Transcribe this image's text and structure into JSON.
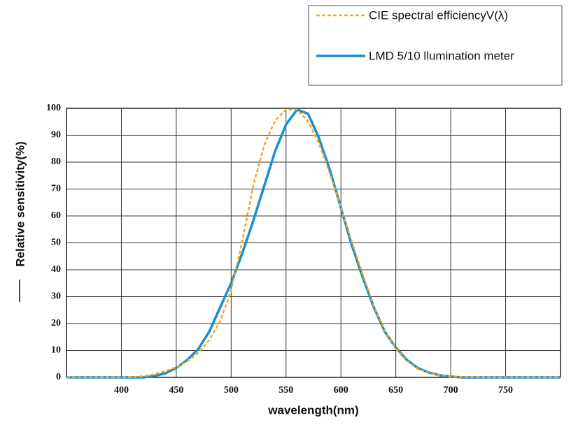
{
  "chart_data": {
    "type": "line",
    "xlabel": "wavelength(nm)",
    "ylabel": "Relative sensitivity(%)",
    "x": [
      350,
      360,
      370,
      380,
      390,
      400,
      410,
      420,
      430,
      440,
      450,
      460,
      470,
      480,
      490,
      500,
      510,
      520,
      530,
      540,
      550,
      560,
      570,
      580,
      590,
      600,
      610,
      620,
      630,
      640,
      650,
      660,
      670,
      680,
      690,
      700,
      710,
      720,
      730,
      740,
      750,
      760,
      770,
      780,
      790,
      800
    ],
    "series": [
      {
        "name": "CIE spectral efficiencyV(λ)",
        "color": "#f5a623",
        "dashed": true,
        "values": [
          0,
          0,
          0,
          0,
          0,
          0,
          0.1,
          0.4,
          1.2,
          2.3,
          3.8,
          6,
          9.1,
          13.9,
          20.8,
          32.3,
          50.3,
          71,
          86.2,
          95.4,
          99.5,
          99.5,
          95.2,
          87,
          75.7,
          63.1,
          50.3,
          38.1,
          26.5,
          17.5,
          10.7,
          6.1,
          3.2,
          1.7,
          0.8,
          0.4,
          0.2,
          0.1,
          0,
          0,
          0,
          0,
          0,
          0,
          0,
          0
        ]
      },
      {
        "name": "LMD 5/10 llumination meter",
        "color": "#1a8fc9",
        "dashed": false,
        "values": [
          0,
          0,
          0,
          0,
          0,
          0,
          0,
          0,
          0.5,
          1.5,
          3.5,
          6.5,
          10.5,
          17,
          26,
          35,
          46,
          58,
          71,
          84,
          94,
          99.5,
          98,
          89,
          77,
          63,
          49,
          37,
          26,
          17,
          11,
          6.5,
          3.5,
          1.8,
          0.8,
          0.3,
          0,
          0,
          0,
          0,
          0,
          0,
          0,
          0,
          0,
          0
        ]
      }
    ],
    "xlim": [
      350,
      800
    ],
    "ylim": [
      0,
      100
    ],
    "xticks": [
      400,
      450,
      500,
      550,
      600,
      650,
      700,
      750
    ],
    "yticks": [
      0,
      10,
      20,
      30,
      40,
      50,
      60,
      70,
      80,
      90,
      100
    ],
    "grid": true,
    "legend": "top-right"
  }
}
